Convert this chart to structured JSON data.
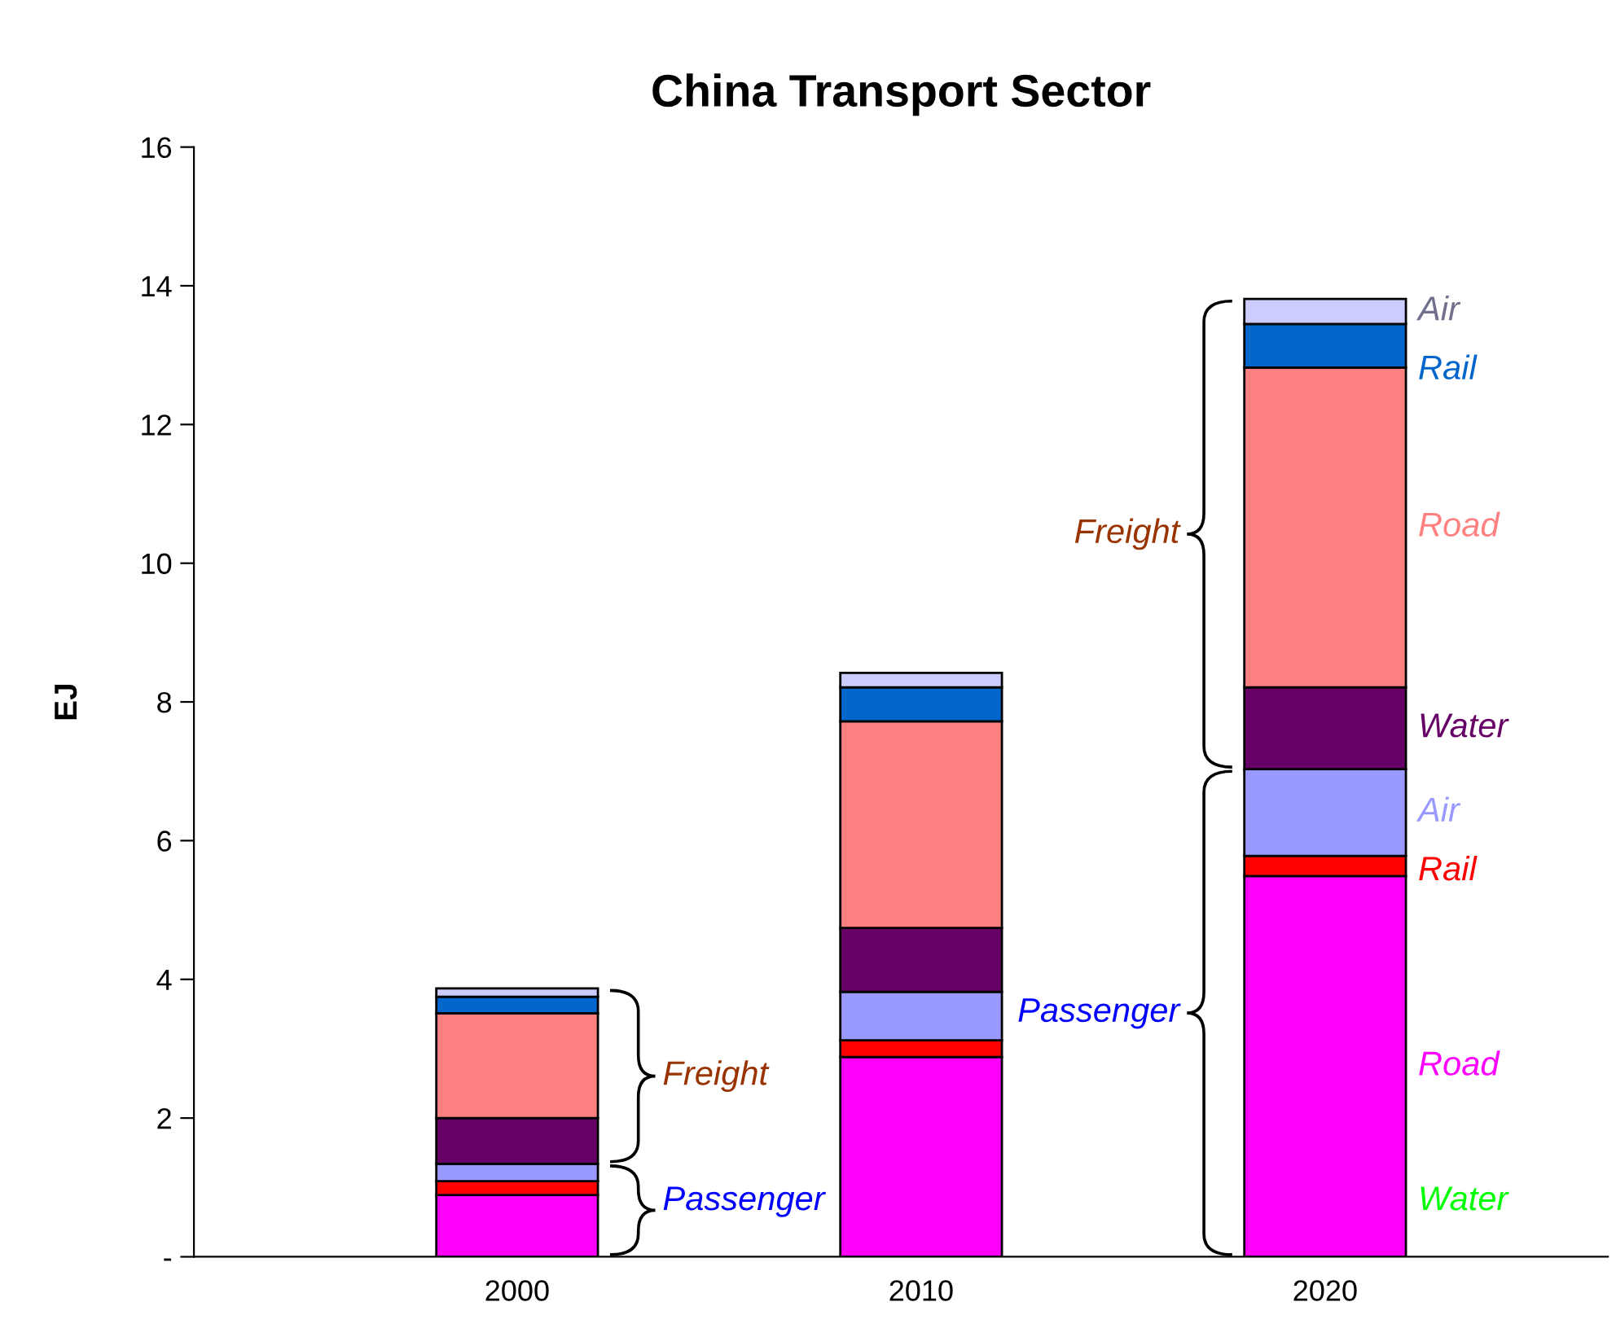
{
  "chart_data": {
    "type": "bar",
    "stacked": true,
    "title": "China Transport Sector",
    "ylabel": "EJ",
    "categories": [
      "2000",
      "2010",
      "2020"
    ],
    "series": [
      {
        "name": "Water",
        "color": "#00ff00",
        "values": [
          0,
          0,
          0
        ]
      },
      {
        "name": "Road",
        "color": "#ff00ff",
        "values": [
          0.89,
          2.88,
          5.49
        ]
      },
      {
        "name": "Rail",
        "color": "#ff0000",
        "values": [
          0.2,
          0.24,
          0.29
        ]
      },
      {
        "name": "Air",
        "color": "#9999ff",
        "values": [
          0.25,
          0.7,
          1.25
        ]
      },
      {
        "name": "Water",
        "color": "#660066",
        "values": [
          0.66,
          0.92,
          1.18
        ]
      },
      {
        "name": "Road",
        "color": "#ff8080",
        "values": [
          1.51,
          2.98,
          4.61
        ]
      },
      {
        "name": "Rail",
        "color": "#0066cc",
        "values": [
          0.24,
          0.49,
          0.63
        ]
      },
      {
        "name": "Air",
        "color": "#ccccff",
        "values": [
          0.12,
          0.21,
          0.36
        ]
      }
    ],
    "ylim": [
      0,
      16
    ],
    "yticks": [
      {
        "value": 0,
        "label": "-"
      },
      2,
      4,
      6,
      8,
      10,
      12,
      14,
      16
    ],
    "grid": false,
    "legend": false,
    "annotations": [
      "Freight",
      "Passenger",
      "Passenger",
      "Freight"
    ]
  }
}
